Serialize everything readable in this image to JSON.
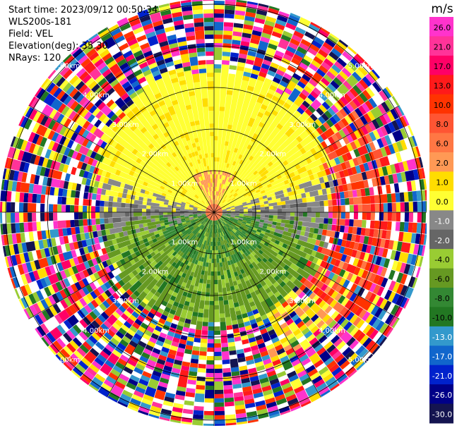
{
  "header": {
    "start_time": "Start time: 2023/09/12 00:50:34",
    "instrument": "WLS200s-181",
    "field": "Field: VEL",
    "elevation": "Elevation(deg): 35.30",
    "nrays": "NRays: 120"
  },
  "chart_data": {
    "type": "heatmap",
    "projection": "polar-ppi",
    "field": "VEL",
    "units": "m/s",
    "n_rays": 120,
    "range_rings_km": [
      1.0,
      2.0,
      3.0,
      4.0,
      5.0
    ],
    "range_ring_labels": [
      "1.00km",
      "2.00km",
      "3.00km",
      "4.00km",
      "5.00km"
    ],
    "azimuth_spokes_deg": [
      0,
      30,
      60,
      90,
      120,
      150,
      180,
      210,
      240,
      270,
      300,
      330
    ],
    "colorbar": {
      "label": "m/s",
      "ticks": [
        "26.0",
        "21.0",
        "17.0",
        "13.0",
        "10.0",
        "8.0",
        "6.0",
        "2.0",
        "1.0",
        "0.0",
        "-1.0",
        "-2.0",
        "-4.0",
        "-6.0",
        "-8.0",
        "-10.0",
        "-13.0",
        "-17.0",
        "-21.0",
        "-26.0",
        "-30.0"
      ],
      "colors": [
        "#ff33cc",
        "#ff3399",
        "#ff0066",
        "#ff1a1a",
        "#ff3300",
        "#ff5533",
        "#ff7744",
        "#ff9955",
        "#ffdd00",
        "#ffff33",
        "#888888",
        "#666666",
        "#99cc33",
        "#669922",
        "#338833",
        "#227722",
        "#3399cc",
        "#1166cc",
        "#0022cc",
        "#000088",
        "#141450"
      ]
    }
  }
}
